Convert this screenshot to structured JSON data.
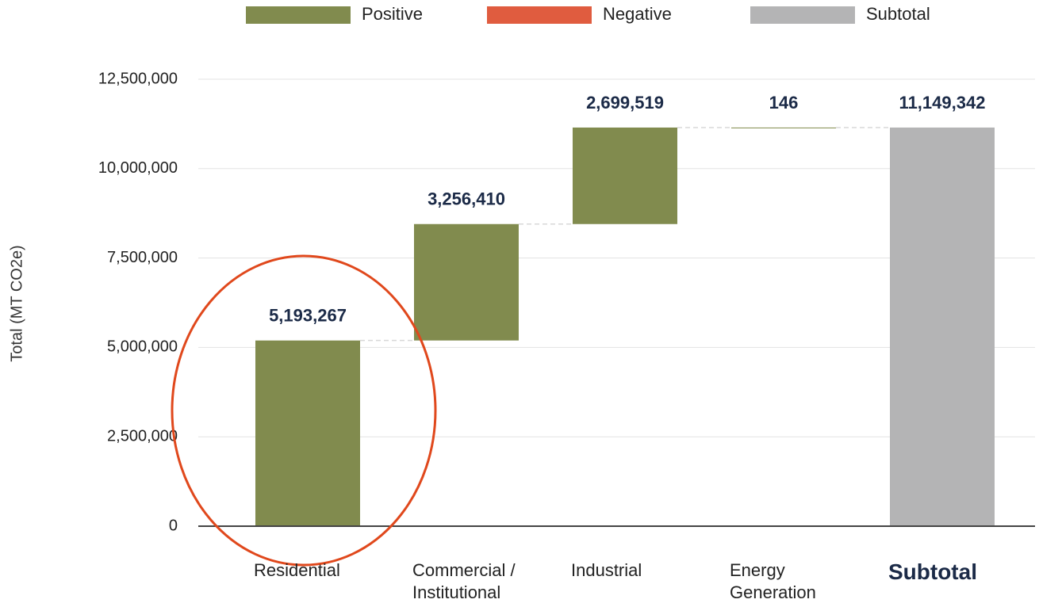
{
  "chart_data": {
    "type": "waterfall",
    "y_label": "Total (MT CO2e)",
    "legend": [
      {
        "name": "Positive",
        "color": "#818b4e"
      },
      {
        "name": "Negative",
        "color": "#e05c3f"
      },
      {
        "name": "Subtotal",
        "color": "#b4b4b5"
      }
    ],
    "categories": [
      "Residential",
      "Commercial / Institutional",
      "Industrial",
      "Energy Generation",
      "Subtotal"
    ],
    "values": [
      5193267,
      3256410,
      2699519,
      146,
      11149342
    ],
    "value_labels": [
      "5,193,267",
      "3,256,410",
      "2,699,519",
      "146",
      "11,149,342"
    ],
    "subtotal": [
      false,
      false,
      false,
      false,
      true
    ],
    "ylim": [
      0,
      12500000
    ],
    "yticks": [
      0,
      {
        "value": 2500000,
        "label": "2,500,000"
      },
      {
        "value": 5000000,
        "label": "5,000,000"
      },
      {
        "value": 7500000,
        "label": "7,500,000"
      },
      {
        "value": 10000000,
        "label": "10,000,000"
      },
      {
        "value": 12500000,
        "label": "12,500,000"
      }
    ],
    "grid": true
  }
}
